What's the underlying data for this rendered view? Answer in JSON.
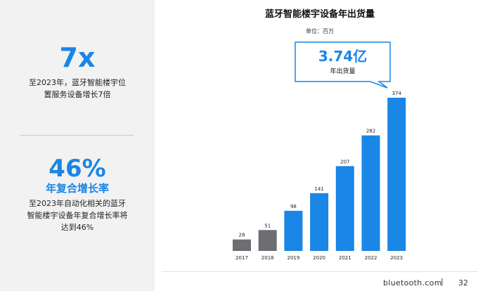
{
  "left": {
    "stat1_value": "7x",
    "stat1_desc_line1": "至2023年，蓝牙智能楼宇位",
    "stat1_desc_line2": "置服务设备增长7倍",
    "stat2_value": "46%",
    "stat2_label": "年复合增长率",
    "stat2_desc_line1": "至2023年自动化相关的蓝牙",
    "stat2_desc_line2": "智能楼宇设备年复合增长率将",
    "stat2_desc_line3": "达到46%"
  },
  "footer": {
    "brand": "bluetooth.com",
    "separator": "|",
    "page": "32"
  },
  "colors": {
    "accent": "#1a86e6",
    "historic_bar": "#6d6e71",
    "forecast_bar": "#1a86e6"
  },
  "chart_data": {
    "type": "bar",
    "title": "蓝牙智能楼宇设备年出货量",
    "unit": "单位：百万",
    "categories": [
      "2017",
      "2018",
      "2019",
      "2020",
      "2021",
      "2022",
      "2023"
    ],
    "values": [
      28,
      51,
      98,
      141,
      207,
      282,
      374
    ],
    "bar_colors": [
      "#6d6e71",
      "#6d6e71",
      "#1a86e6",
      "#1a86e6",
      "#1a86e6",
      "#1a86e6",
      "#1a86e6"
    ],
    "ylim": [
      0,
      374
    ],
    "grid": false,
    "callout": {
      "value": "3.74亿",
      "label": "年出货量",
      "category": "2023"
    }
  }
}
